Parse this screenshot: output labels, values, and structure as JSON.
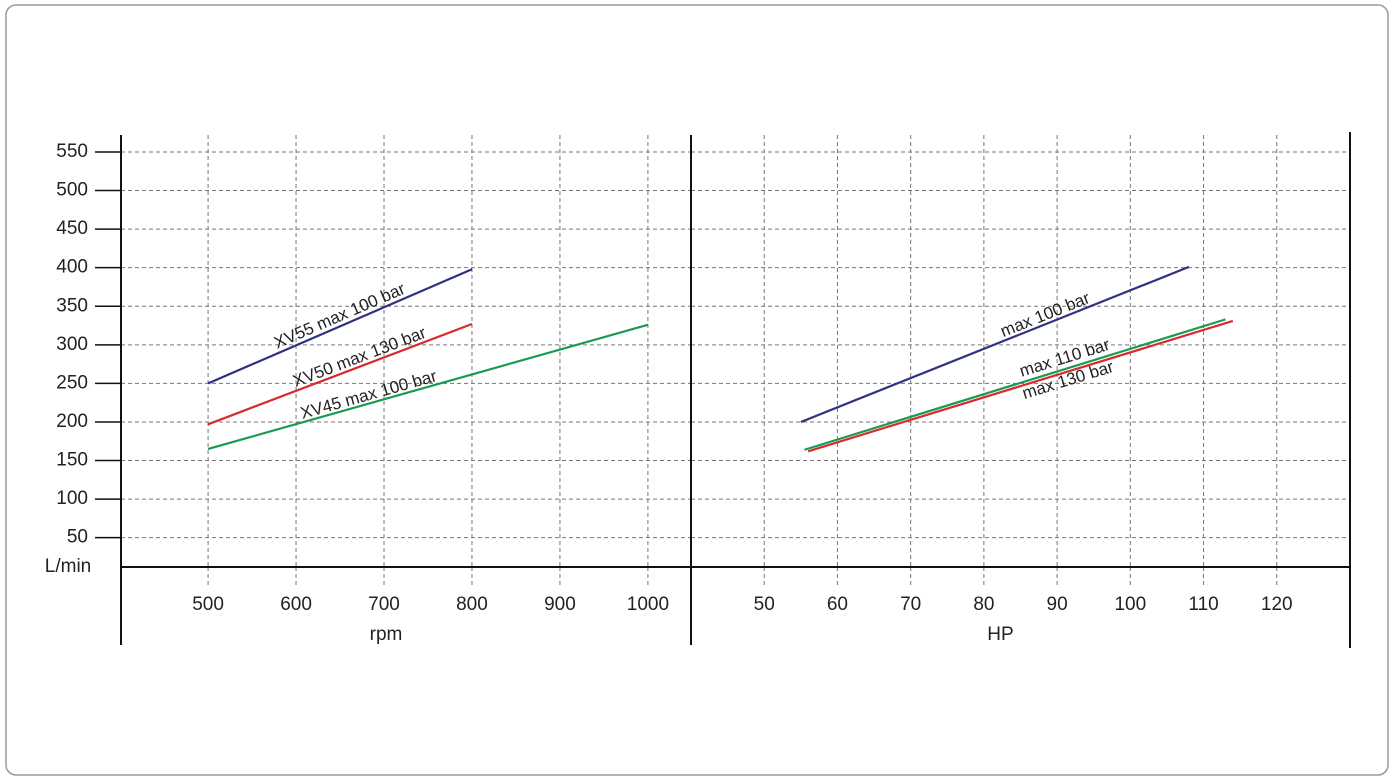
{
  "chart_data": [
    {
      "type": "line",
      "y_label": "L/min",
      "x_label": "rpm",
      "xlim": [
        401,
        1049
      ],
      "xticks": [
        500,
        600,
        700,
        800,
        900,
        1000
      ],
      "ylim": [
        12,
        572
      ],
      "yticks": [
        50,
        100,
        150,
        200,
        250,
        300,
        350,
        400,
        450,
        500,
        550
      ],
      "grid": true,
      "series": [
        {
          "name": "XV55 max 100 bar",
          "color": "#2e3080",
          "x": [
            500,
            800
          ],
          "values": [
            250,
            398
          ]
        },
        {
          "name": "XV50 max 130 bar",
          "color": "#d9282f",
          "x": [
            500,
            800
          ],
          "values": [
            197,
            327
          ]
        },
        {
          "name": "XV45 max 100 bar",
          "color": "#1a9a50",
          "x": [
            500,
            1000
          ],
          "values": [
            165,
            326
          ]
        }
      ]
    },
    {
      "type": "line",
      "x_label": "HP",
      "xlim": [
        40,
        130
      ],
      "xticks": [
        50,
        60,
        70,
        80,
        90,
        100,
        110,
        120
      ],
      "ylim": [
        12,
        572
      ],
      "yticks": [
        50,
        100,
        150,
        200,
        250,
        300,
        350,
        400,
        450,
        500,
        550
      ],
      "grid": true,
      "series": [
        {
          "name": "max 100 bar",
          "color": "#2e3080",
          "x": [
            55,
            108
          ],
          "values": [
            200,
            401
          ]
        },
        {
          "name": "max 110 bar",
          "color": "#1a9a50",
          "x": [
            55.5,
            113
          ],
          "values": [
            164,
            333
          ]
        },
        {
          "name": "max 130 bar",
          "color": "#d9282f",
          "x": [
            56,
            114
          ],
          "values": [
            162,
            331
          ]
        }
      ]
    }
  ]
}
